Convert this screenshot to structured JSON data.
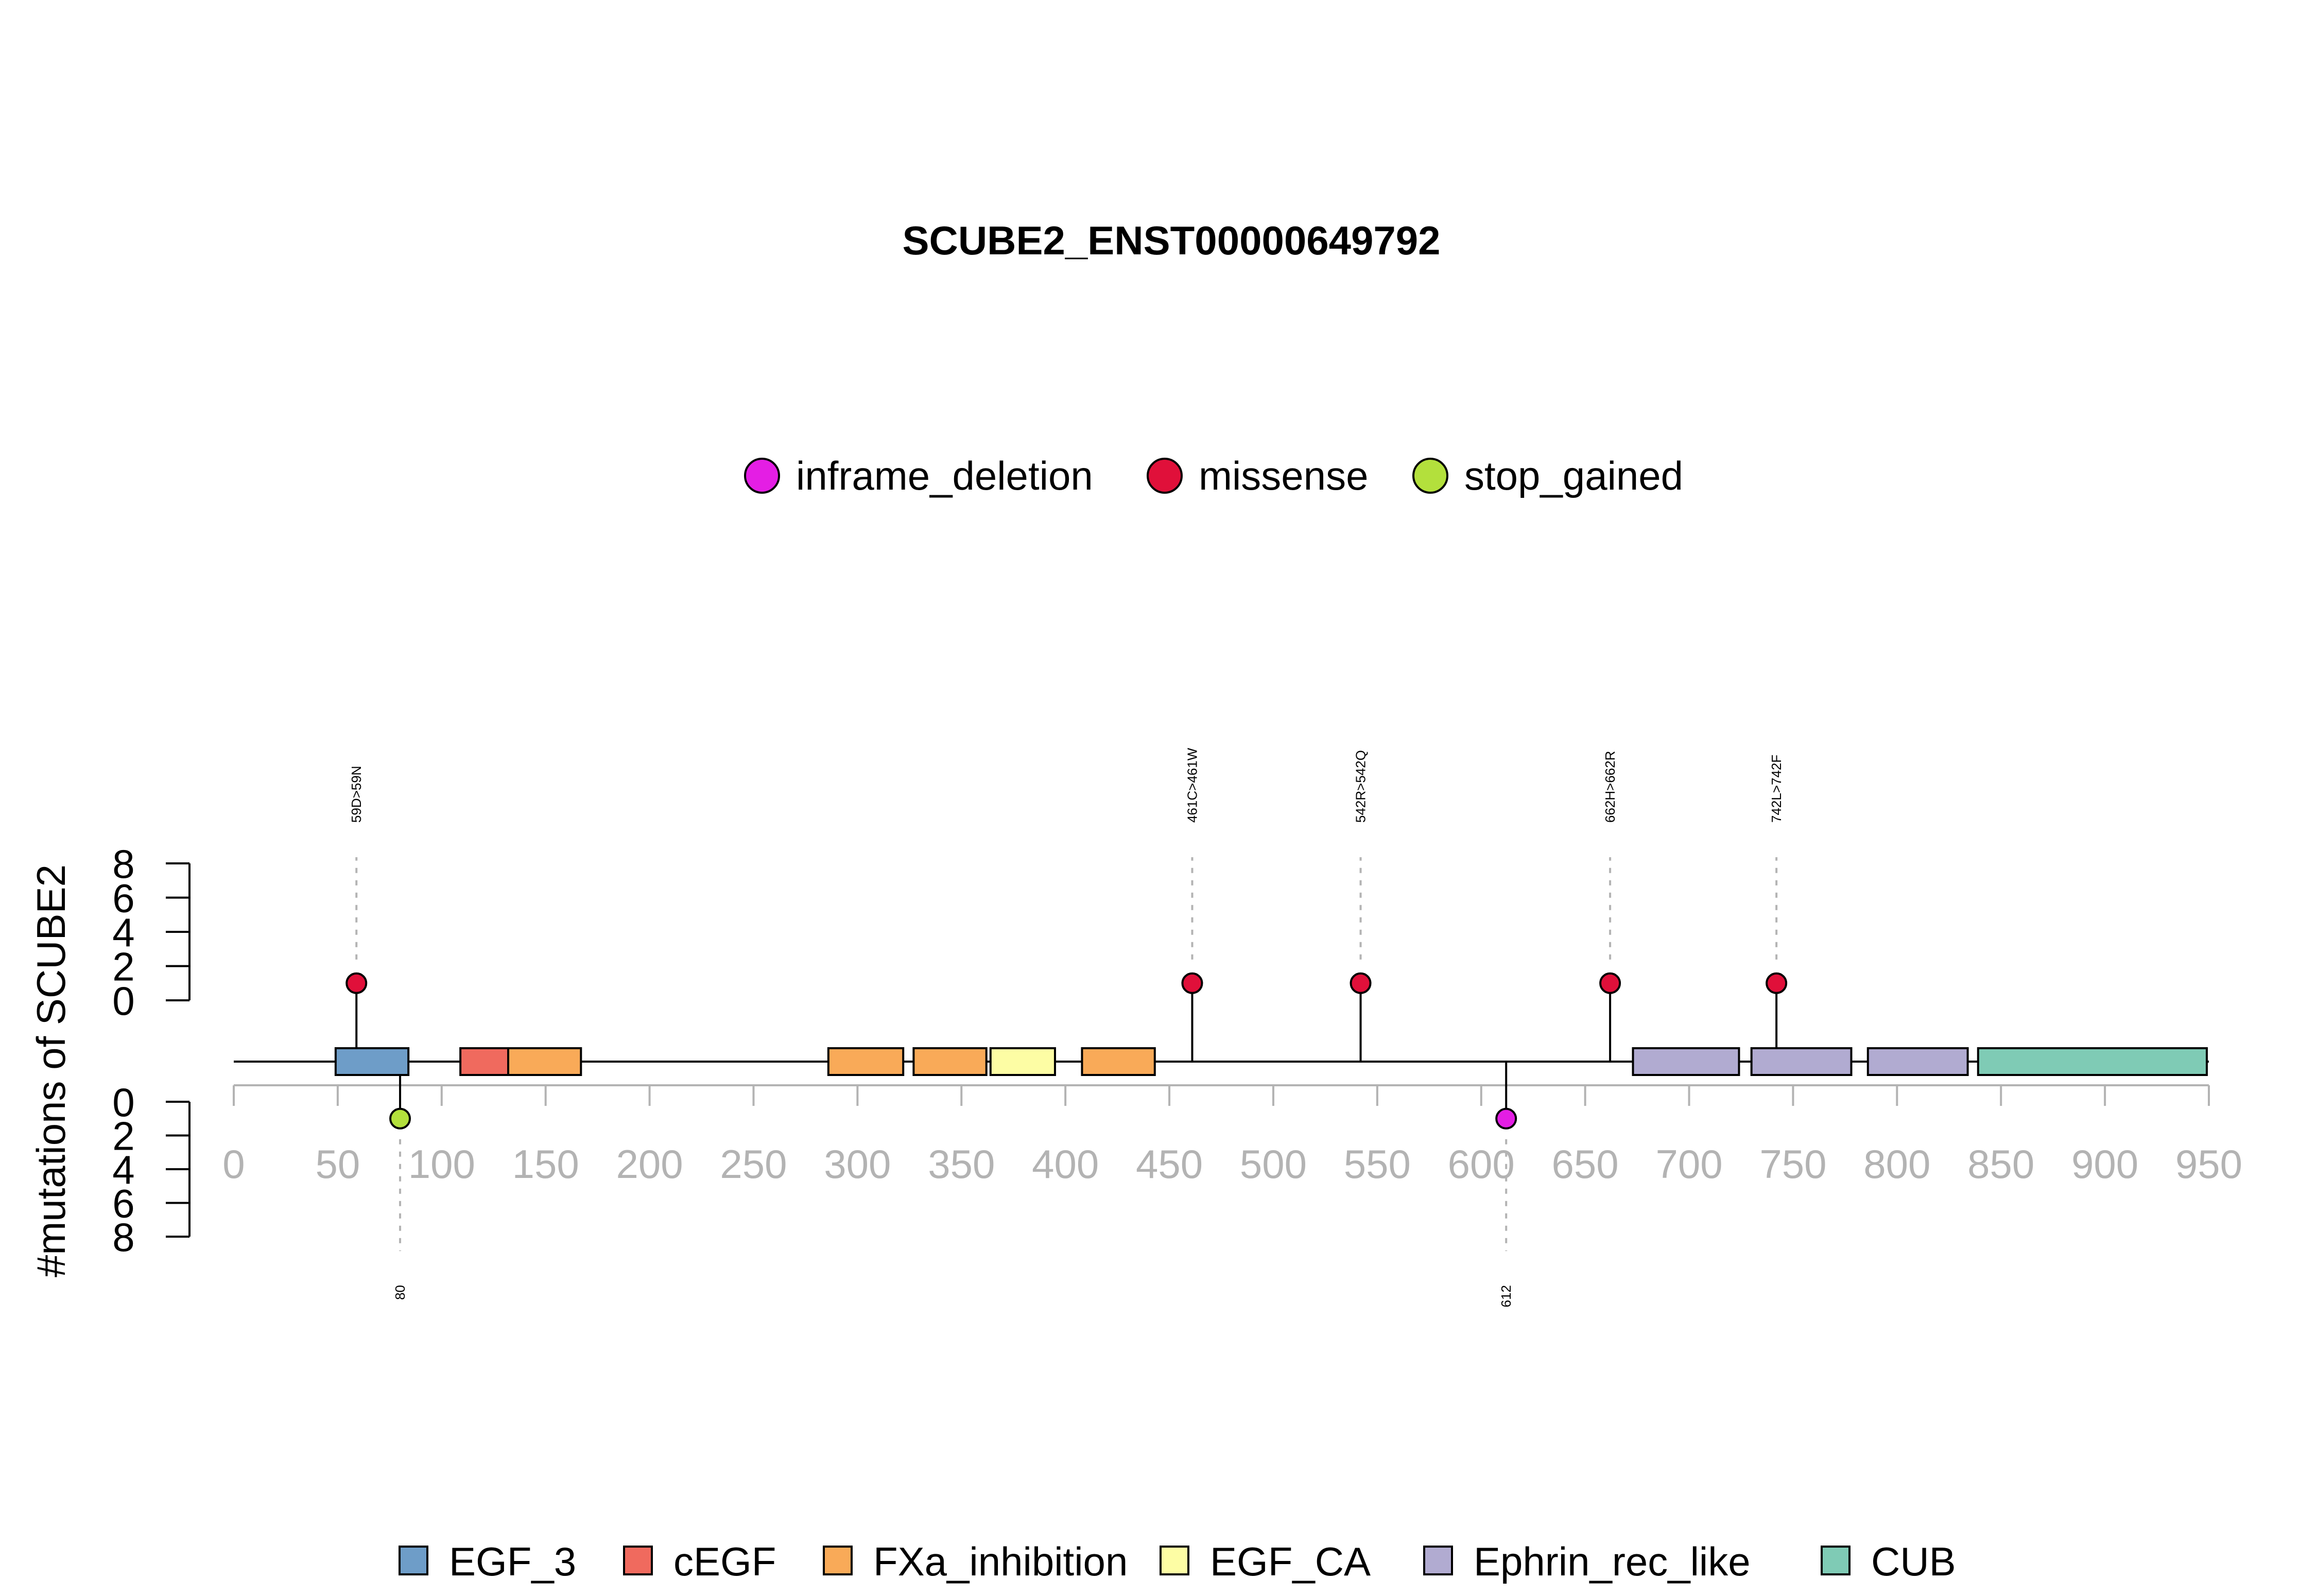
{
  "chart_data": {
    "type": "lollipop",
    "title": "SCUBE2_ENST00000649792",
    "ylabel": "#mutations of SCUBE2",
    "xlim": [
      0,
      950
    ],
    "x_ticks": [
      0,
      50,
      100,
      150,
      200,
      250,
      300,
      350,
      400,
      450,
      500,
      550,
      600,
      650,
      700,
      750,
      800,
      850,
      900,
      950
    ],
    "y_ticks": [
      0,
      2,
      4,
      6,
      8
    ],
    "ylim": [
      0,
      8
    ],
    "mutation_types": [
      {
        "name": "inframe_deletion",
        "color": "#e41ee4"
      },
      {
        "name": "missense",
        "color": "#e0103a"
      },
      {
        "name": "stop_gained",
        "color": "#b3e03c"
      }
    ],
    "domain_types": [
      {
        "name": "EGF_3",
        "color": "#6e9dc8"
      },
      {
        "name": "cEGF",
        "color": "#f06a5e"
      },
      {
        "name": "FXa_inhibition",
        "color": "#f9aa58"
      },
      {
        "name": "EGF_CA",
        "color": "#fdfda4"
      },
      {
        "name": "Ephrin_rec_like",
        "color": "#b1abd1"
      },
      {
        "name": "CUB",
        "color": "#7fcbb5"
      }
    ],
    "domains": [
      {
        "name": "EGF_3",
        "start": 49,
        "end": 84
      },
      {
        "name": "cEGF",
        "start": 109,
        "end": 132
      },
      {
        "name": "FXa_inhibition",
        "start": 132,
        "end": 167
      },
      {
        "name": "FXa_inhibition",
        "start": 286,
        "end": 322
      },
      {
        "name": "FXa_inhibition",
        "start": 327,
        "end": 362
      },
      {
        "name": "EGF_CA",
        "start": 364,
        "end": 395
      },
      {
        "name": "FXa_inhibition",
        "start": 408,
        "end": 443
      },
      {
        "name": "Ephrin_rec_like",
        "start": 673,
        "end": 724
      },
      {
        "name": "Ephrin_rec_like",
        "start": 730,
        "end": 778
      },
      {
        "name": "Ephrin_rec_like",
        "start": 786,
        "end": 834
      },
      {
        "name": "CUB",
        "start": 839,
        "end": 949
      }
    ],
    "mutations_top": [
      {
        "position": 59,
        "count": 1,
        "type": "missense",
        "label": "59D>59N"
      },
      {
        "position": 461,
        "count": 1,
        "type": "missense",
        "label": "461C>461W"
      },
      {
        "position": 542,
        "count": 1,
        "type": "missense",
        "label": "542R>542Q"
      },
      {
        "position": 662,
        "count": 1,
        "type": "missense",
        "label": "662H>662R"
      },
      {
        "position": 742,
        "count": 1,
        "type": "missense",
        "label": "742L>742F"
      }
    ],
    "mutations_bottom": [
      {
        "position": 80,
        "count": 1,
        "type": "stop_gained",
        "label": "80"
      },
      {
        "position": 612,
        "count": 1,
        "type": "inframe_deletion",
        "label": "612"
      }
    ]
  }
}
